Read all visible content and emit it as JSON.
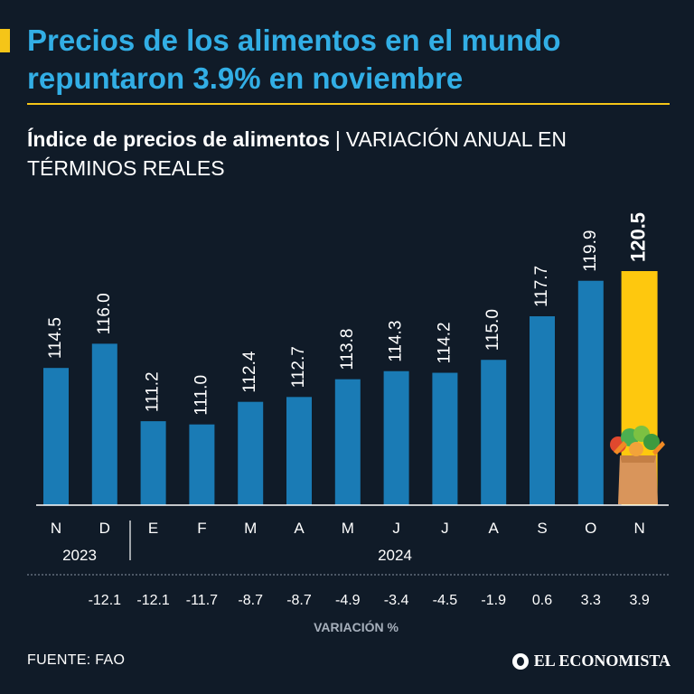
{
  "header": {
    "title": "Precios de los alimentos en el mundo repuntaron 3.9% en noviembre",
    "subtitle_bold": "Índice de precios de alimentos",
    "subtitle_sep": "|",
    "subtitle_rest": "VARIACIÓN ANUAL EN TÉRMINOS REALES"
  },
  "chart_data": {
    "type": "bar",
    "title": "Índice de precios de alimentos",
    "categories": [
      "N",
      "D",
      "E",
      "F",
      "M",
      "A",
      "M",
      "J",
      "J",
      "A",
      "S",
      "O",
      "N"
    ],
    "values": [
      114.5,
      116.0,
      111.2,
      111.0,
      112.4,
      112.7,
      113.8,
      114.3,
      114.2,
      115.0,
      117.7,
      119.9,
      120.5
    ],
    "value_labels": [
      "114.5",
      "116.0",
      "111.2",
      "111.0",
      "112.4",
      "112.7",
      "113.8",
      "114.3",
      "114.2",
      "115.0",
      "117.7",
      "119.9",
      "120.5"
    ],
    "variation": [
      "",
      "-12.1",
      "-12.1",
      "-11.7",
      "-8.7",
      "-8.7",
      "-4.9",
      "-3.4",
      "-4.5",
      "-1.9",
      "0.6",
      "3.3",
      "3.9"
    ],
    "variation_label": "VARIACIÓN %",
    "years": [
      "2023",
      "2024"
    ],
    "highlight_index": 12,
    "ylim": [
      106,
      120.5
    ],
    "bar_color": "#1a7bb5",
    "highlight_color": "#fec80e"
  },
  "footer": {
    "source": "FUENTE: FAO",
    "brand": "EL ECONOMISTA"
  },
  "colors": {
    "background": "#101b28",
    "title": "#32aee5",
    "accent": "#f5c518"
  }
}
